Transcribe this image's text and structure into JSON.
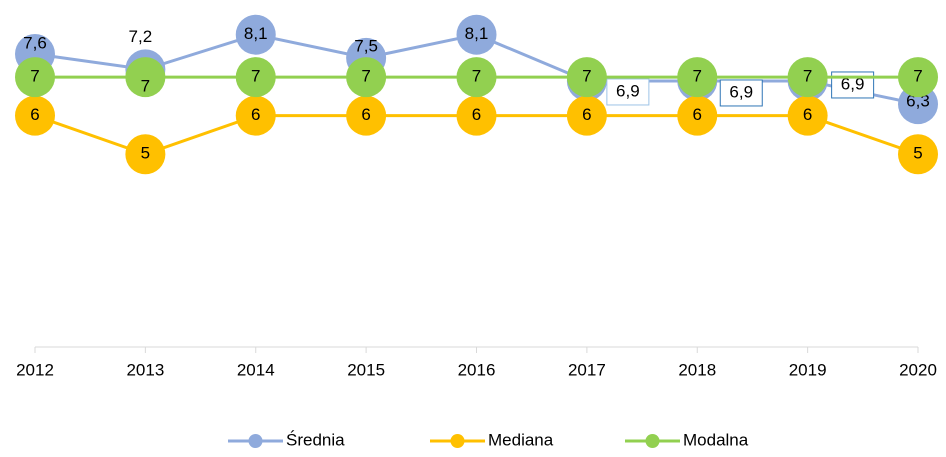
{
  "chart_data": {
    "type": "line",
    "categories": [
      "2012",
      "2013",
      "2014",
      "2015",
      "2016",
      "2017",
      "2018",
      "2019",
      "2020"
    ],
    "series": [
      {
        "name": "Średnia",
        "color": "#8faadc",
        "values": [
          7.6,
          7.2,
          8.1,
          7.5,
          8.1,
          6.9,
          6.9,
          6.9,
          6.3
        ],
        "value_labels": [
          "7,6",
          "7,2",
          "8,1",
          "7,5",
          "8,1",
          "6,9",
          "6,9",
          "6,9",
          "6,3"
        ]
      },
      {
        "name": "Mediana",
        "color": "#ffc000",
        "values": [
          6,
          5,
          6,
          6,
          6,
          6,
          6,
          6,
          5
        ]
      },
      {
        "name": "Modalna",
        "color": "#92d050",
        "values": [
          7,
          7,
          7,
          7,
          7,
          7,
          7,
          7,
          7
        ]
      }
    ],
    "ylim": [
      0,
      9
    ],
    "legend": "bottom"
  }
}
